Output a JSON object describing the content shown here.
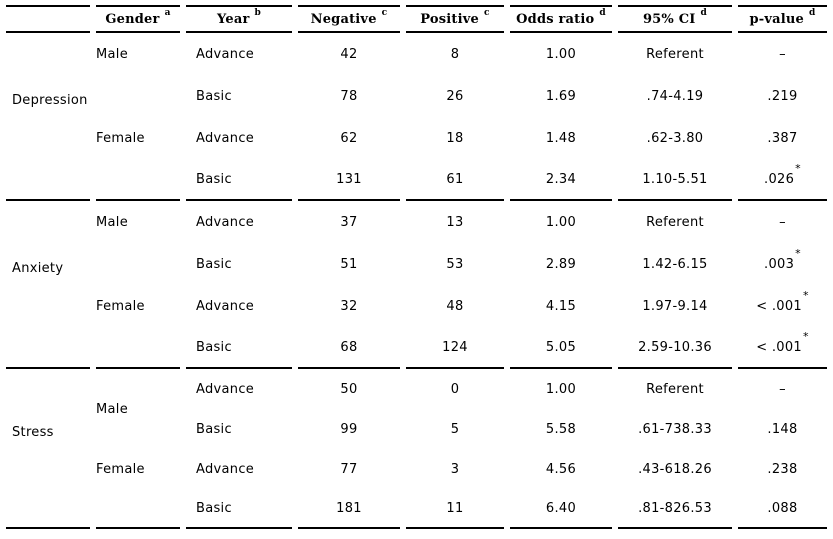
{
  "table": {
    "headers": [
      {
        "label": "",
        "sup": ""
      },
      {
        "label": "Gender",
        "sup": "a"
      },
      {
        "label": "Year",
        "sup": "b"
      },
      {
        "label": "Negative",
        "sup": "c"
      },
      {
        "label": "Positive",
        "sup": "c"
      },
      {
        "label": "Odds ratio",
        "sup": "d"
      },
      {
        "label": "95% CI",
        "sup": "d"
      },
      {
        "label": "p-value",
        "sup": "d"
      }
    ],
    "sections": [
      {
        "group": "Depression",
        "rows": [
          {
            "gender": {
              "label": "Male",
              "rowspan": 1
            },
            "year": "Advance",
            "negative": "42",
            "positive": "8",
            "odds_ratio": "1.00",
            "ci": "Referent",
            "p_value": "–",
            "p_star": false
          },
          {
            "gender": {
              "label": "",
              "rowspan": 1
            },
            "year": "Basic",
            "negative": "78",
            "positive": "26",
            "odds_ratio": "1.69",
            "ci": ".74-4.19",
            "p_value": ".219",
            "p_star": false
          },
          {
            "gender": {
              "label": "Female",
              "rowspan": 1
            },
            "year": "Advance",
            "negative": "62",
            "positive": "18",
            "odds_ratio": "1.48",
            "ci": ".62-3.80",
            "p_value": ".387",
            "p_star": false
          },
          {
            "gender": {
              "label": "",
              "rowspan": 1
            },
            "year": "Basic",
            "negative": "131",
            "positive": "61",
            "odds_ratio": "2.34",
            "ci": "1.10-5.51",
            "p_value": ".026",
            "p_star": true
          }
        ]
      },
      {
        "group": "Anxiety",
        "rows": [
          {
            "gender": {
              "label": "Male",
              "rowspan": 1
            },
            "year": "Advance",
            "negative": "37",
            "positive": "13",
            "odds_ratio": "1.00",
            "ci": "Referent",
            "p_value": "–",
            "p_star": false
          },
          {
            "gender": {
              "label": "",
              "rowspan": 1
            },
            "year": "Basic",
            "negative": "51",
            "positive": "53",
            "odds_ratio": "2.89",
            "ci": "1.42-6.15",
            "p_value": ".003",
            "p_star": true
          },
          {
            "gender": {
              "label": "Female",
              "rowspan": 1
            },
            "year": "Advance",
            "negative": "32",
            "positive": "48",
            "odds_ratio": "4.15",
            "ci": "1.97-9.14",
            "p_value": "< .001",
            "p_star": true
          },
          {
            "gender": {
              "label": "",
              "rowspan": 1
            },
            "year": "Basic",
            "negative": "68",
            "positive": "124",
            "odds_ratio": "5.05",
            "ci": "2.59-10.36",
            "p_value": "< .001",
            "p_star": true
          }
        ]
      },
      {
        "group": "Stress",
        "rows": [
          {
            "gender": {
              "label": "Male",
              "rowspan": 2
            },
            "year": "Advance",
            "negative": "50",
            "positive": "0",
            "odds_ratio": "1.00",
            "ci": "Referent",
            "p_value": "–",
            "p_star": false
          },
          {
            "gender": null,
            "year": "Basic",
            "negative": "99",
            "positive": "5",
            "odds_ratio": "5.58",
            "ci": ".61-738.33",
            "p_value": ".148",
            "p_star": false
          },
          {
            "gender": {
              "label": "Female",
              "rowspan": 1
            },
            "year": "Advance",
            "negative": "77",
            "positive": "3",
            "odds_ratio": "4.56",
            "ci": ".43-618.26",
            "p_value": ".238",
            "p_star": false
          },
          {
            "gender": {
              "label": "",
              "rowspan": 1
            },
            "year": "Basic",
            "negative": "181",
            "positive": "11",
            "odds_ratio": "6.40",
            "ci": ".81-826.53",
            "p_value": ".088",
            "p_star": false
          }
        ]
      }
    ]
  }
}
